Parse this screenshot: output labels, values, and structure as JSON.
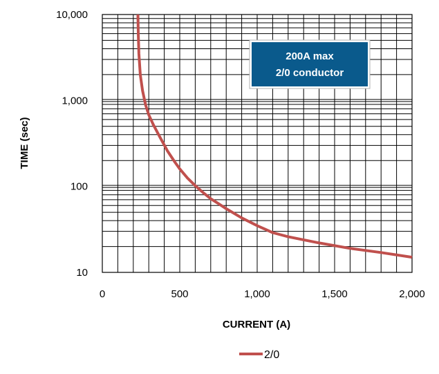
{
  "chart_data": {
    "type": "line",
    "title": "",
    "xlabel": "CURRENT (A)",
    "ylabel": "TIME (sec)",
    "xlim": [
      0,
      2000
    ],
    "ylim": [
      10,
      10000
    ],
    "y_scale": "log",
    "grid": true,
    "legend_position": "bottom-center",
    "x_tick_labels": [
      "0",
      "500",
      "1,000",
      "1,500",
      "2,000"
    ],
    "x_tick_values": [
      0,
      500,
      1000,
      1500,
      2000
    ],
    "y_tick_labels": [
      "10",
      "100",
      "1,000",
      "10,000"
    ],
    "y_tick_values": [
      10,
      100,
      1000,
      10000
    ],
    "annotation": {
      "lines": [
        "200A max",
        "2/0 conductor"
      ],
      "background": "#0a5a8c",
      "text_color": "#ffffff"
    },
    "series": [
      {
        "name": "2/0",
        "color": "#c0504d",
        "x": [
          230,
          232,
          236,
          245,
          260,
          280,
          300,
          330,
          370,
          420,
          470,
          500,
          550,
          600,
          650,
          700,
          750,
          800,
          900,
          1000,
          1100,
          1200,
          1400,
          1600,
          1800,
          2000
        ],
        "y": [
          10000,
          6000,
          3500,
          2000,
          1300,
          880,
          680,
          520,
          380,
          260,
          190,
          160,
          125,
          102,
          85,
          72,
          63,
          55,
          43,
          35,
          29,
          26,
          22,
          19,
          17,
          15
        ]
      }
    ]
  }
}
